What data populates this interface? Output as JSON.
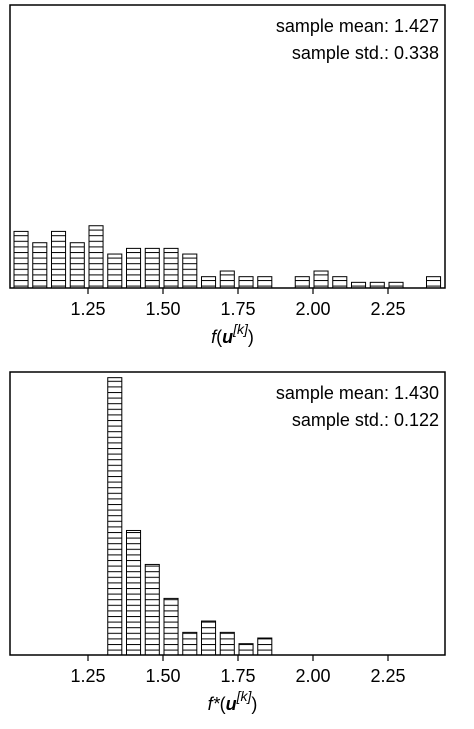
{
  "chart_data": [
    {
      "type": "histogram",
      "bins": [
        1.0,
        1.0625,
        1.125,
        1.1875,
        1.25,
        1.3125,
        1.375,
        1.4375,
        1.5,
        1.5625,
        1.625,
        1.6875,
        1.75,
        1.8125,
        1.875,
        1.9375,
        2.0,
        2.0625,
        2.125,
        2.1875,
        2.25,
        2.3125,
        2.375,
        2.4375
      ],
      "counts": [
        10,
        8,
        10,
        8,
        11,
        6,
        7,
        7,
        7,
        6,
        2,
        3,
        2,
        2,
        0,
        2,
        3,
        2,
        1,
        1,
        1,
        0,
        2
      ],
      "xlim": [
        0.99,
        2.44
      ],
      "ylim": [
        0,
        50
      ],
      "xticks": [
        1.25,
        {
          "value": 1.5,
          "label": "1.50"
        },
        1.75,
        {
          "value": 2.0,
          "label": "2.00"
        },
        2.25
      ],
      "xlabel_parts": [
        "f",
        "(",
        "u",
        "[k]",
        ")"
      ],
      "annotations": [
        "sample mean: 1.427",
        "sample std.: 0.338"
      ]
    },
    {
      "type": "histogram",
      "bins": [
        1.0,
        1.0625,
        1.125,
        1.1875,
        1.25,
        1.3125,
        1.375,
        1.4375,
        1.5,
        1.5625,
        1.625,
        1.6875,
        1.75,
        1.8125,
        1.875,
        1.9375,
        2.0,
        2.0625,
        2.125,
        2.1875,
        2.25,
        2.3125,
        2.375,
        2.4375
      ],
      "counts": [
        0,
        0,
        0,
        0,
        0,
        49,
        22,
        16,
        10,
        4,
        6,
        4,
        2,
        3,
        0,
        0,
        0,
        0,
        0,
        0,
        0,
        0,
        0
      ],
      "xlim": [
        0.99,
        2.44
      ],
      "ylim": [
        0,
        50
      ],
      "xticks": [
        1.25,
        {
          "value": 1.5,
          "label": "1.50"
        },
        1.75,
        {
          "value": 2.0,
          "label": "2.00"
        },
        2.25
      ],
      "xlabel_parts": [
        "f*",
        "(",
        "u",
        "[k]",
        ")"
      ],
      "annotations": [
        "sample mean: 1.430",
        "sample std.: 0.122"
      ]
    }
  ]
}
